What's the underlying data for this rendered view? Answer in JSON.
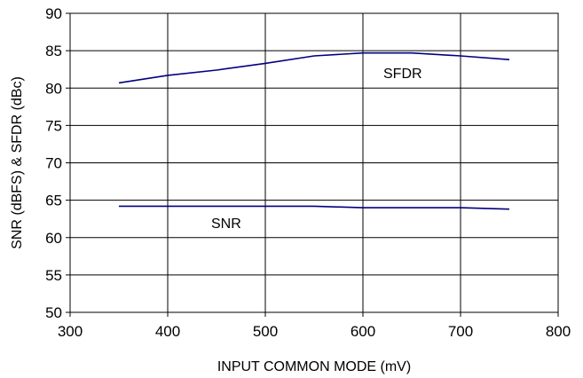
{
  "chart_data": {
    "type": "line",
    "title": "",
    "xlabel": "INPUT COMMON MODE (mV)",
    "ylabel": "SNR (dBFS) & SFDR (dBc)",
    "xlim": [
      300,
      800
    ],
    "ylim": [
      50,
      90
    ],
    "xticks": [
      300,
      400,
      500,
      600,
      700,
      800
    ],
    "yticks": [
      50,
      55,
      60,
      65,
      70,
      75,
      80,
      85,
      90
    ],
    "grid": true,
    "legend": "none",
    "series": [
      {
        "name": "SFDR",
        "color": "#000080",
        "points": [
          [
            350,
            80.7
          ],
          [
            400,
            81.7
          ],
          [
            450,
            82.4
          ],
          [
            500,
            83.3
          ],
          [
            550,
            84.3
          ],
          [
            600,
            84.7
          ],
          [
            650,
            84.7
          ],
          [
            700,
            84.3
          ],
          [
            750,
            83.8
          ]
        ]
      },
      {
        "name": "SNR",
        "color": "#000080",
        "points": [
          [
            350,
            64.2
          ],
          [
            400,
            64.2
          ],
          [
            450,
            64.2
          ],
          [
            500,
            64.2
          ],
          [
            550,
            64.2
          ],
          [
            600,
            64.0
          ],
          [
            650,
            64.0
          ],
          [
            700,
            64.0
          ],
          [
            750,
            63.8
          ]
        ]
      }
    ]
  }
}
